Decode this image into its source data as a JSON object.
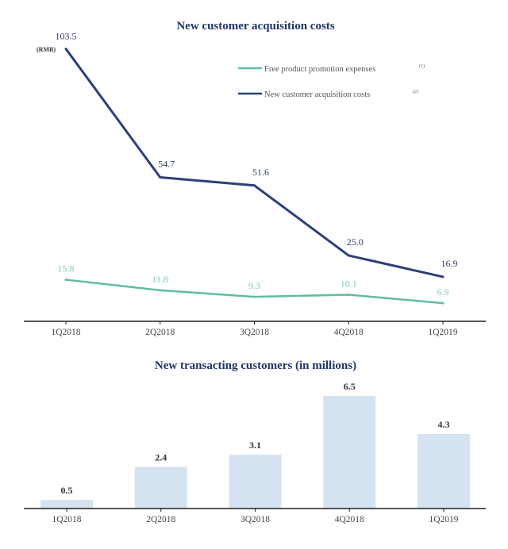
{
  "chart_data": [
    {
      "type": "line",
      "title": "New customer acquisition costs",
      "unit_label": "(RMB)",
      "categories": [
        "1Q2018",
        "2Q2018",
        "3Q2018",
        "4Q2018",
        "1Q2019"
      ],
      "ylim": [
        0,
        110
      ],
      "grid": false,
      "legend_position": "top-right",
      "series": [
        {
          "name": "Free product promotion expenses",
          "note": "(1)",
          "color": "#5fbf9c",
          "label_color": "#7fcbb0",
          "values": [
            15.8,
            11.8,
            9.3,
            10.1,
            6.9
          ],
          "labels": [
            "15.8",
            "11.8",
            "9.3",
            "10.1",
            "6.9"
          ]
        },
        {
          "name": "New customer acquisition costs",
          "note": "(2)",
          "color": "#2c3f7a",
          "label_color": "#2f3a66",
          "values": [
            103.5,
            54.7,
            51.6,
            25.0,
            16.9
          ],
          "labels": [
            "103.5",
            "54.7",
            "51.6",
            "25.0",
            "16.9"
          ]
        }
      ]
    },
    {
      "type": "bar",
      "title": "New transacting customers (in millions)",
      "categories": [
        "1Q2018",
        "2Q2018",
        "3Q2018",
        "4Q2018",
        "1Q2019"
      ],
      "values": [
        0.5,
        2.4,
        3.1,
        6.5,
        4.3
      ],
      "labels": [
        "0.5",
        "2.4",
        "3.1",
        "6.5",
        "4.3"
      ],
      "ylim": [
        0,
        7
      ],
      "bar_color": "#d5e2ef",
      "grid": false
    }
  ]
}
